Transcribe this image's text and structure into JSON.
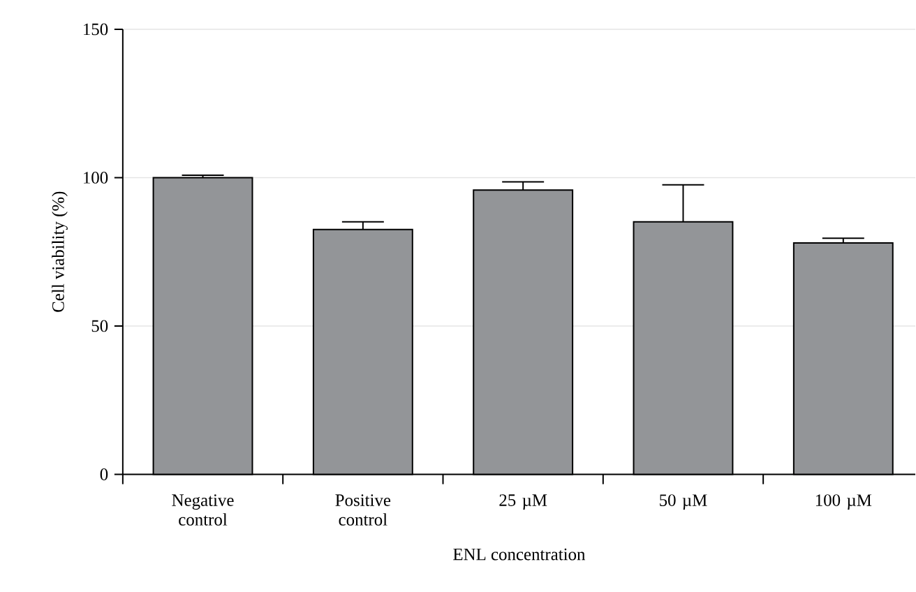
{
  "chart_data": {
    "type": "bar",
    "xlabel": "ENL concentration",
    "ylabel": "Cell viability (%)",
    "categories": [
      "Negative control",
      "Positive control",
      "25 µM",
      "50 µM",
      "100 µM"
    ],
    "values": [
      100,
      82.5,
      95.8,
      85.1,
      78.0
    ],
    "errors": [
      0.8,
      2.6,
      2.8,
      12.5,
      1.6
    ],
    "color": "#939598",
    "ylim": [
      0,
      150
    ],
    "yticks": [
      0,
      50,
      100,
      150
    ],
    "grid": "y"
  }
}
